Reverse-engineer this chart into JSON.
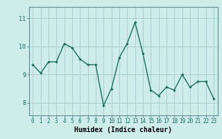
{
  "x": [
    0,
    1,
    2,
    3,
    4,
    5,
    6,
    7,
    8,
    9,
    10,
    11,
    12,
    13,
    14,
    15,
    16,
    17,
    18,
    19,
    20,
    21,
    22,
    23
  ],
  "y": [
    9.35,
    9.05,
    9.45,
    9.45,
    10.1,
    9.95,
    9.55,
    9.35,
    9.35,
    7.9,
    8.5,
    9.6,
    10.1,
    10.85,
    9.75,
    8.45,
    8.25,
    8.55,
    8.45,
    9.0,
    8.55,
    8.75,
    8.75,
    8.15
  ],
  "line_color": "#1a6b5a",
  "marker": "D",
  "marker_size": 1.8,
  "line_width": 1.0,
  "bg_color": "#ceecea",
  "grid_color": "#aacfcc",
  "xlabel": "Humidex (Indice chaleur)",
  "xlabel_fontsize": 7,
  "tick_fontsize": 5.5,
  "ytick_fontsize": 6,
  "yticks": [
    8,
    9,
    10,
    11
  ],
  "xticks": [
    0,
    1,
    2,
    3,
    4,
    5,
    6,
    7,
    8,
    9,
    10,
    11,
    12,
    13,
    14,
    15,
    16,
    17,
    18,
    19,
    20,
    21,
    22,
    23
  ],
  "ylim": [
    7.55,
    11.4
  ],
  "xlim": [
    -0.5,
    23.5
  ]
}
